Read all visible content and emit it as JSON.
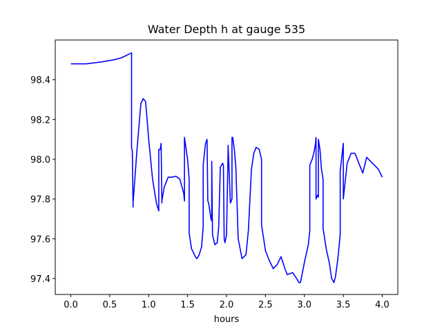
{
  "chart_data": {
    "type": "line",
    "title": "Water Depth h at gauge 535",
    "xlabel": "hours",
    "ylabel": "",
    "xlim": [
      -0.2,
      4.2
    ],
    "ylim": [
      97.32,
      98.6
    ],
    "xticks": [
      0.0,
      0.5,
      1.0,
      1.5,
      2.0,
      2.5,
      3.0,
      3.5,
      4.0
    ],
    "xtick_labels": [
      "0.0",
      "0.5",
      "1.0",
      "1.5",
      "2.0",
      "2.5",
      "3.0",
      "3.5",
      "4.0"
    ],
    "yticks": [
      97.4,
      97.6,
      97.8,
      98.0,
      98.2,
      98.4
    ],
    "ytick_labels": [
      "97.4",
      "97.6",
      "97.8",
      "98.0",
      "98.2",
      "98.4"
    ],
    "grid": false,
    "series": [
      {
        "color": "#0000ff",
        "x": [
          0.0,
          0.2,
          0.4,
          0.55,
          0.65,
          0.78,
          0.78,
          0.79,
          0.8,
          0.8,
          0.85,
          0.9,
          0.93,
          0.96,
          0.98,
          1.0,
          1.05,
          1.1,
          1.13,
          1.13,
          1.15,
          1.16,
          1.17,
          1.17,
          1.2,
          1.25,
          1.3,
          1.35,
          1.4,
          1.45,
          1.46,
          1.46,
          1.5,
          1.52,
          1.52,
          1.55,
          1.6,
          1.62,
          1.65,
          1.68,
          1.7,
          1.7,
          1.73,
          1.75,
          1.76,
          1.77,
          1.8,
          1.81,
          1.81,
          1.82,
          1.85,
          1.88,
          1.9,
          1.92,
          1.95,
          1.96,
          1.97,
          1.98,
          2.0,
          2.02,
          2.02,
          2.05,
          2.07,
          2.07,
          2.08,
          2.1,
          2.12,
          2.15,
          2.16,
          2.2,
          2.25,
          2.28,
          2.32,
          2.35,
          2.38,
          2.42,
          2.45,
          2.45,
          2.5,
          2.55,
          2.6,
          2.65,
          2.7,
          2.75,
          2.78,
          2.85,
          2.9,
          2.93,
          2.95,
          3.0,
          3.05,
          3.07,
          3.07,
          3.1,
          3.12,
          3.14,
          3.15,
          3.15,
          3.17,
          3.18,
          3.18,
          3.2,
          3.22,
          3.24,
          3.24,
          3.25,
          3.28,
          3.32,
          3.35,
          3.38,
          3.4,
          3.43,
          3.46,
          3.46,
          3.5,
          3.5,
          3.55,
          3.6,
          3.65,
          3.7,
          3.75,
          3.8,
          3.85,
          3.9,
          3.95,
          4.0
        ],
        "y": [
          98.48,
          98.48,
          98.49,
          98.5,
          98.51,
          98.535,
          98.06,
          98.04,
          97.76,
          97.78,
          98.05,
          98.28,
          98.305,
          98.29,
          98.2,
          98.1,
          97.9,
          97.78,
          97.74,
          98.05,
          98.05,
          98.08,
          97.78,
          97.79,
          97.86,
          97.91,
          97.91,
          97.915,
          97.9,
          97.83,
          97.79,
          98.11,
          98.0,
          97.9,
          97.63,
          97.55,
          97.51,
          97.5,
          97.52,
          97.56,
          97.66,
          97.97,
          98.08,
          98.1,
          97.79,
          97.78,
          97.7,
          97.69,
          97.99,
          97.62,
          97.57,
          97.58,
          97.66,
          97.96,
          97.98,
          97.97,
          97.6,
          97.58,
          97.62,
          98.05,
          98.07,
          97.78,
          97.8,
          98.11,
          98.11,
          98.05,
          97.96,
          97.6,
          97.58,
          97.5,
          97.52,
          97.64,
          97.95,
          98.03,
          98.06,
          98.05,
          98.0,
          97.67,
          97.54,
          97.49,
          97.45,
          97.47,
          97.51,
          97.45,
          97.42,
          97.43,
          97.4,
          97.38,
          97.38,
          97.48,
          97.57,
          97.64,
          97.97,
          98.0,
          98.03,
          98.07,
          98.11,
          97.8,
          97.82,
          97.81,
          98.1,
          98.05,
          97.95,
          97.9,
          97.65,
          97.63,
          97.55,
          97.48,
          97.4,
          97.38,
          97.41,
          97.5,
          97.62,
          97.94,
          98.08,
          97.8,
          97.98,
          98.03,
          98.03,
          97.98,
          97.93,
          98.01,
          97.99,
          97.97,
          97.95,
          97.91
        ]
      }
    ]
  }
}
